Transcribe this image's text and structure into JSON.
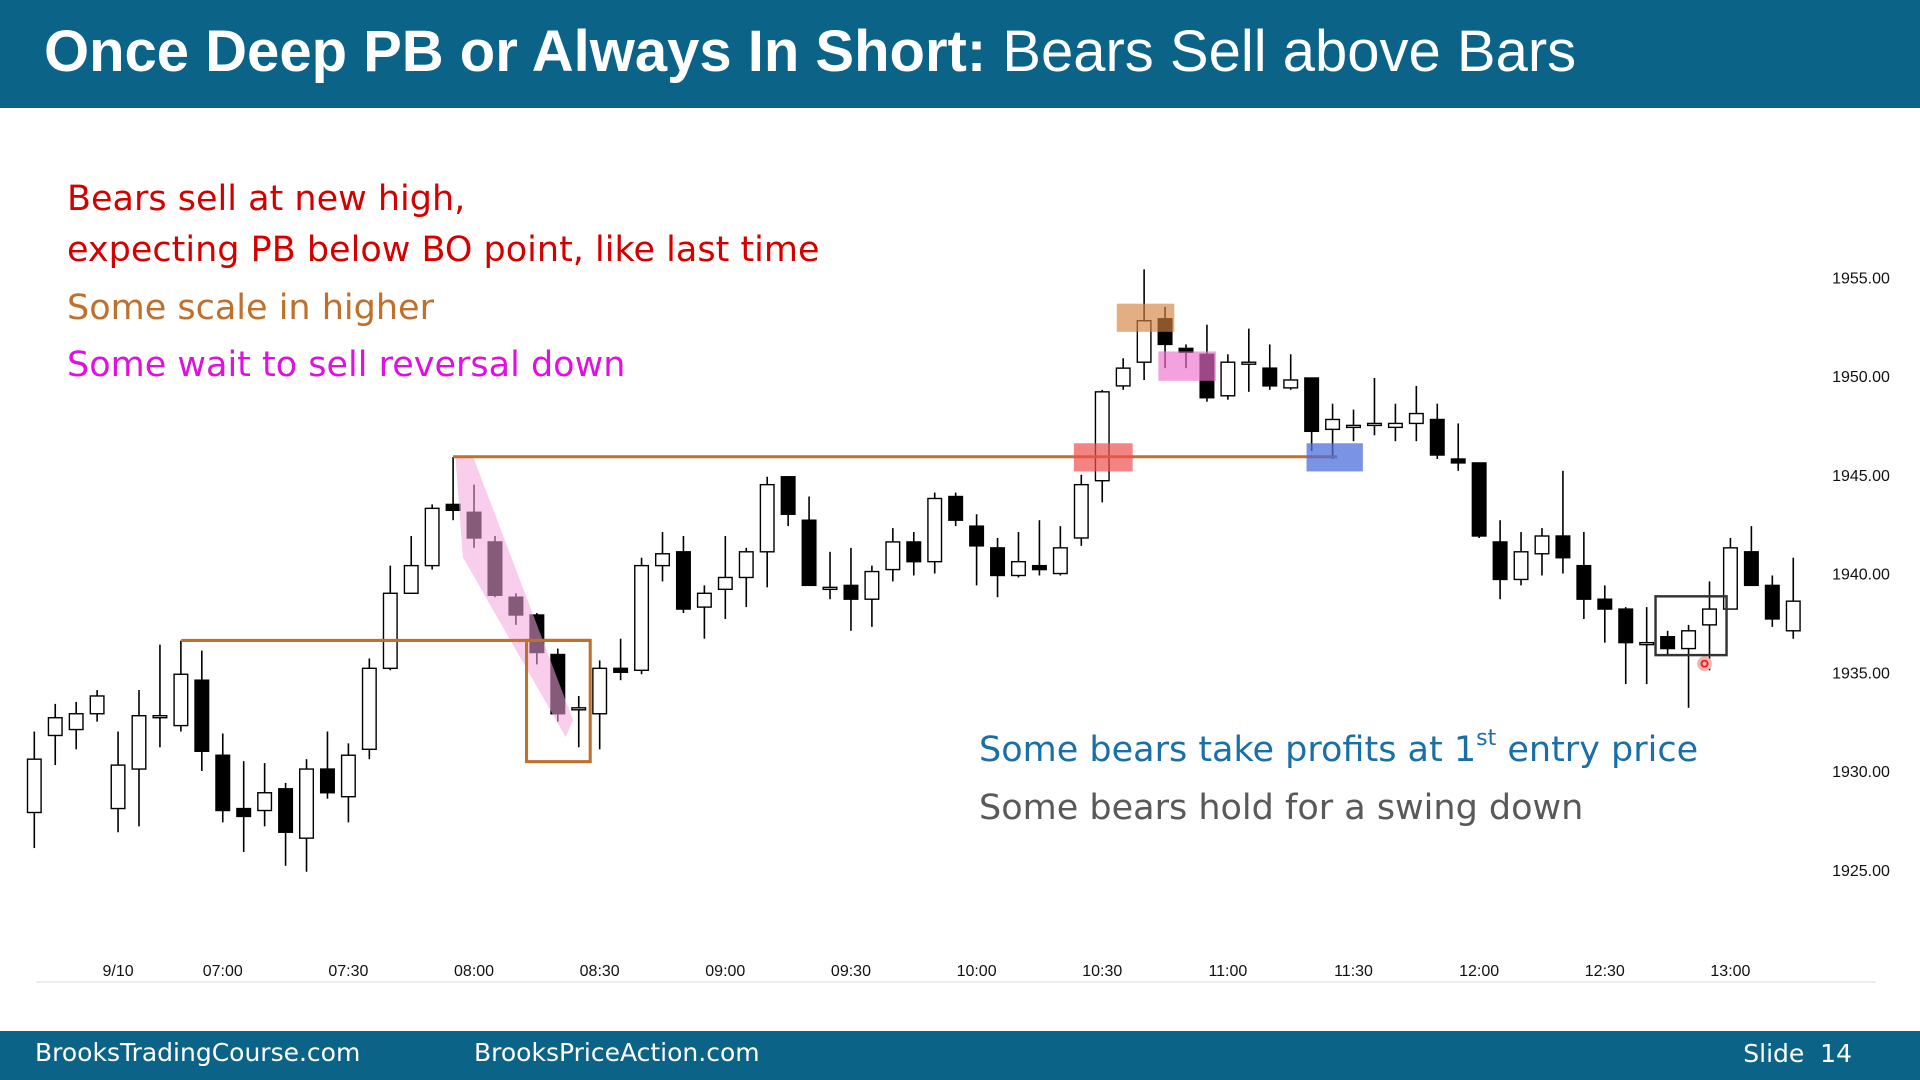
{
  "slide": {
    "title_bold": "Once Deep PB or Always In Short:",
    "title_rest": "Bears Sell above Bars",
    "footer_left": "BrooksTradingCourse.com",
    "footer_mid": "BrooksPriceAction.com",
    "footer_right": "Slide  14"
  },
  "chart_data": {
    "type": "candlestick",
    "annotations": [
      "Bears sell at new high,",
      "expecting PB below BO point, like last time",
      "Some scale in higher",
      "Some wait to sell reversal down",
      "Some bears take profits at 1",
      "st",
      " entry price",
      "Some bears hold for a swing down"
    ],
    "annotation_colors": [
      "#d40000",
      "#d40000",
      "#c0702b",
      "#e010e0",
      "#1a6fa6",
      "#1a6fa6",
      "#1a6fa6",
      "#595959"
    ],
    "up_color": "#ffffff",
    "down_color": "#000000",
    "categories": [
      null,
      null,
      null,
      null,
      "9/10",
      null,
      null,
      null,
      null,
      "07:00",
      null,
      null,
      null,
      null,
      null,
      "07:30",
      null,
      null,
      null,
      null,
      null,
      "08:00",
      null,
      null,
      null,
      null,
      null,
      "08:30",
      null,
      null,
      null,
      null,
      null,
      "09:00",
      null,
      null,
      null,
      null,
      null,
      "09:30",
      null,
      null,
      null,
      null,
      null,
      "10:00",
      null,
      null,
      null,
      null,
      null,
      "10:30",
      null,
      null,
      null,
      null,
      null,
      "11:00",
      null,
      null,
      null,
      null,
      null,
      "11:30",
      null,
      null,
      null,
      null,
      null,
      "12:00",
      null,
      null,
      null,
      null,
      null,
      "12:30",
      null,
      null,
      null,
      null,
      null,
      "13:00",
      null,
      null,
      null
    ],
    "open": [
      1928.0,
      1931.9,
      1932.2,
      1933.0,
      1928.2,
      1930.2,
      1932.9,
      1932.4,
      1934.7,
      1930.9,
      1928.2,
      1928.1,
      1929.2,
      1926.7,
      1930.2,
      1928.8,
      1931.2,
      1935.3,
      1939.1,
      1940.5,
      1943.6,
      1943.2,
      1941.7,
      1938.9,
      1938.0,
      1936.0,
      1933.3,
      1933.0,
      1935.3,
      1935.2,
      1940.5,
      1941.2,
      1938.4,
      1939.3,
      1939.9,
      1941.2,
      1945.0,
      1942.8,
      1939.4,
      1939.5,
      1938.8,
      1940.3,
      1941.7,
      1940.7,
      1944.0,
      1942.5,
      1941.4,
      1940.0,
      1940.5,
      1940.1,
      1941.9,
      1944.8,
      1949.6,
      1950.8,
      1953.0,
      1951.5,
      1951.2,
      1949.1,
      1950.8,
      1950.5,
      1949.5,
      1950.0,
      1947.4,
      1947.6,
      1947.7,
      1947.5,
      1947.7,
      1947.9,
      1945.9,
      1945.7,
      1941.7,
      1939.8,
      1941.1,
      1942.0,
      1940.5,
      1938.8,
      1938.3,
      1936.5,
      1936.9,
      1936.3,
      1937.5,
      1938.3,
      1941.2,
      1939.5,
      1937.2
    ],
    "high": [
      1932.1,
      1933.5,
      1933.6,
      1934.2,
      1932.1,
      1934.2,
      1936.5,
      1936.7,
      1936.2,
      1932.0,
      1930.6,
      1930.5,
      1929.5,
      1930.7,
      1932.1,
      1931.5,
      1935.8,
      1940.5,
      1942.0,
      1943.6,
      1946.0,
      1944.6,
      1942.0,
      1939.1,
      1938.1,
      1936.3,
      1933.9,
      1935.7,
      1936.8,
      1940.9,
      1942.2,
      1942.0,
      1939.5,
      1942.0,
      1941.4,
      1945.0,
      1945.0,
      1944.0,
      1941.2,
      1941.4,
      1940.5,
      1942.4,
      1942.2,
      1944.2,
      1944.2,
      1943.1,
      1941.9,
      1942.2,
      1942.8,
      1942.5,
      1945.1,
      1949.4,
      1951.0,
      1955.5,
      1953.6,
      1951.7,
      1952.7,
      1951.2,
      1952.5,
      1951.7,
      1951.2,
      1950.0,
      1948.7,
      1948.4,
      1950.0,
      1948.7,
      1949.6,
      1948.7,
      1947.7,
      1945.7,
      1942.8,
      1942.2,
      1942.4,
      1945.3,
      1942.2,
      1939.5,
      1938.4,
      1938.4,
      1937.2,
      1937.5,
      1939.7,
      1941.9,
      1942.5,
      1940.0,
      1940.9
    ],
    "low": [
      1926.2,
      1930.4,
      1931.2,
      1932.6,
      1927.0,
      1927.3,
      1931.3,
      1932.1,
      1930.1,
      1927.5,
      1926.0,
      1927.3,
      1925.3,
      1925.0,
      1928.7,
      1927.5,
      1930.7,
      1935.2,
      1939.1,
      1940.3,
      1942.8,
      1941.4,
      1938.9,
      1937.5,
      1935.5,
      1932.6,
      1931.3,
      1931.2,
      1934.7,
      1935.0,
      1939.7,
      1938.1,
      1936.8,
      1937.8,
      1938.4,
      1939.4,
      1942.5,
      1939.5,
      1938.8,
      1937.2,
      1937.4,
      1939.7,
      1940.0,
      1940.1,
      1942.5,
      1939.5,
      1938.9,
      1939.9,
      1940.0,
      1940.0,
      1941.5,
      1943.7,
      1949.4,
      1949.9,
      1950.5,
      1950.5,
      1948.8,
      1948.9,
      1949.3,
      1949.4,
      1949.4,
      1946.3,
      1945.9,
      1946.8,
      1947.1,
      1946.8,
      1946.8,
      1945.9,
      1945.3,
      1941.9,
      1938.8,
      1939.5,
      1940.0,
      1940.1,
      1937.8,
      1936.6,
      1934.5,
      1934.5,
      1936.0,
      1933.3,
      1935.2,
      1938.3,
      1939.5,
      1937.4,
      1936.8
    ],
    "close": [
      1930.7,
      1932.8,
      1933.0,
      1933.9,
      1930.4,
      1932.9,
      1932.9,
      1935.0,
      1931.1,
      1928.1,
      1927.8,
      1929.0,
      1927.0,
      1930.2,
      1929.0,
      1930.9,
      1935.3,
      1939.1,
      1940.5,
      1943.4,
      1943.3,
      1941.9,
      1939.0,
      1938.0,
      1936.1,
      1933.0,
      1933.3,
      1935.3,
      1935.1,
      1940.5,
      1941.1,
      1938.3,
      1939.1,
      1939.9,
      1941.2,
      1944.6,
      1943.1,
      1939.5,
      1939.4,
      1938.8,
      1940.2,
      1941.7,
      1940.7,
      1943.9,
      1942.8,
      1941.5,
      1940.0,
      1940.7,
      1940.3,
      1941.4,
      1944.6,
      1949.3,
      1950.5,
      1952.9,
      1951.7,
      1951.3,
      1949.0,
      1950.8,
      1950.8,
      1949.6,
      1949.9,
      1947.3,
      1947.9,
      1947.6,
      1947.7,
      1947.7,
      1948.2,
      1946.1,
      1945.7,
      1942.0,
      1939.8,
      1941.2,
      1942.0,
      1940.9,
      1938.8,
      1938.3,
      1936.6,
      1936.6,
      1936.3,
      1937.2,
      1938.3,
      1941.4,
      1939.5,
      1937.8,
      1938.7
    ],
    "ylim": [
      1922,
      1958
    ],
    "yticks": [
      {
        "value": 1925,
        "label": "1925.00"
      },
      {
        "value": 1930,
        "label": "1930.00"
      },
      {
        "value": 1935,
        "label": "1935.00"
      },
      {
        "value": 1940,
        "label": "1940.00"
      },
      {
        "value": 1945,
        "label": "1945.00"
      },
      {
        "value": 1950,
        "label": "1950.00"
      },
      {
        "value": 1955,
        "label": "1955.00"
      }
    ],
    "grid": false
  }
}
